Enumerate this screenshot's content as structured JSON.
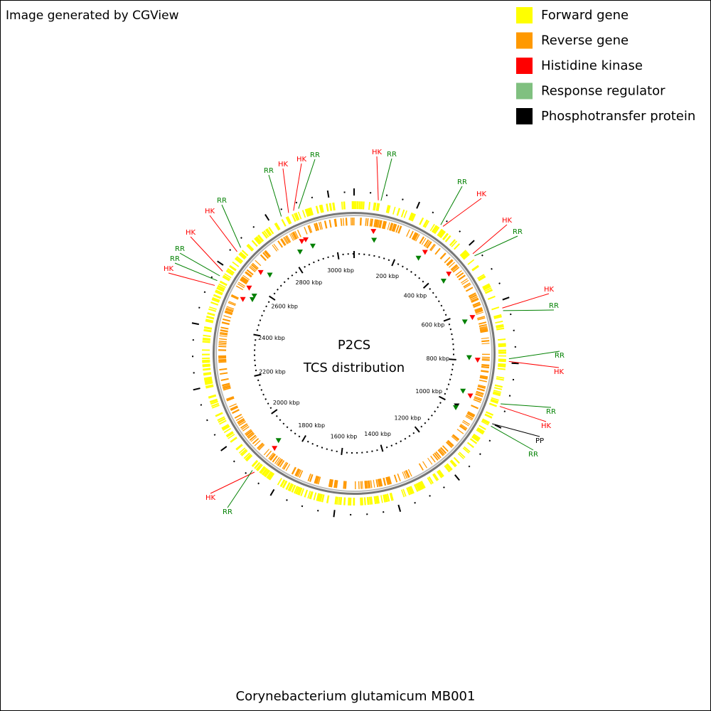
{
  "header": {
    "text": "Image generated by CGView"
  },
  "legend": [
    {
      "label": "Forward gene",
      "color": "#ffff00"
    },
    {
      "label": "Reverse gene",
      "color": "#ff9900"
    },
    {
      "label": "Histidine kinase",
      "color": "#ff0000"
    },
    {
      "label": "Response regulator",
      "color": "#80c080"
    },
    {
      "label": "Phosphotransfer protein",
      "color": "#000000"
    }
  ],
  "map": {
    "title": "P2CS",
    "subtitle": "TCS distribution",
    "ruler_labels": [
      "200 kbp",
      "400 kbp",
      "600 kbp",
      "800 kbp",
      "1000 kbp",
      "1200 kbp",
      "1400 kbp",
      "1600 kbp",
      "1800 kbp",
      "2000 kbp",
      "2200 kbp",
      "2400 kbp",
      "2600 kbp",
      "2800 kbp",
      "3000 kbp"
    ],
    "features": [
      {
        "label": "HK",
        "color": "#ff0000"
      },
      {
        "label": "RR",
        "color": "#008000"
      },
      {
        "label": "RR",
        "color": "#008000"
      },
      {
        "label": "HK",
        "color": "#ff0000"
      },
      {
        "label": "HK",
        "color": "#ff0000"
      },
      {
        "label": "RR",
        "color": "#008000"
      },
      {
        "label": "HK",
        "color": "#ff0000"
      },
      {
        "label": "RR",
        "color": "#008000"
      },
      {
        "label": "RR",
        "color": "#008000"
      },
      {
        "label": "HK",
        "color": "#ff0000"
      },
      {
        "label": "RR",
        "color": "#008000"
      },
      {
        "label": "HK",
        "color": "#ff0000"
      },
      {
        "label": "PP",
        "color": "#000000"
      },
      {
        "label": "RR",
        "color": "#008000"
      },
      {
        "label": "HK",
        "color": "#ff0000"
      },
      {
        "label": "RR",
        "color": "#008000"
      },
      {
        "label": "HK",
        "color": "#ff0000"
      },
      {
        "label": "RR",
        "color": "#008000"
      },
      {
        "label": "RR",
        "color": "#008000"
      },
      {
        "label": "HK",
        "color": "#ff0000"
      },
      {
        "label": "HK",
        "color": "#ff0000"
      },
      {
        "label": "RR",
        "color": "#008000"
      },
      {
        "label": "RR",
        "color": "#008000"
      },
      {
        "label": "HK",
        "color": "#ff0000"
      },
      {
        "label": "HK",
        "color": "#ff0000"
      },
      {
        "label": "RR",
        "color": "#008000"
      }
    ]
  },
  "footer": {
    "text": "Corynebacterium glutamicum MB001"
  }
}
